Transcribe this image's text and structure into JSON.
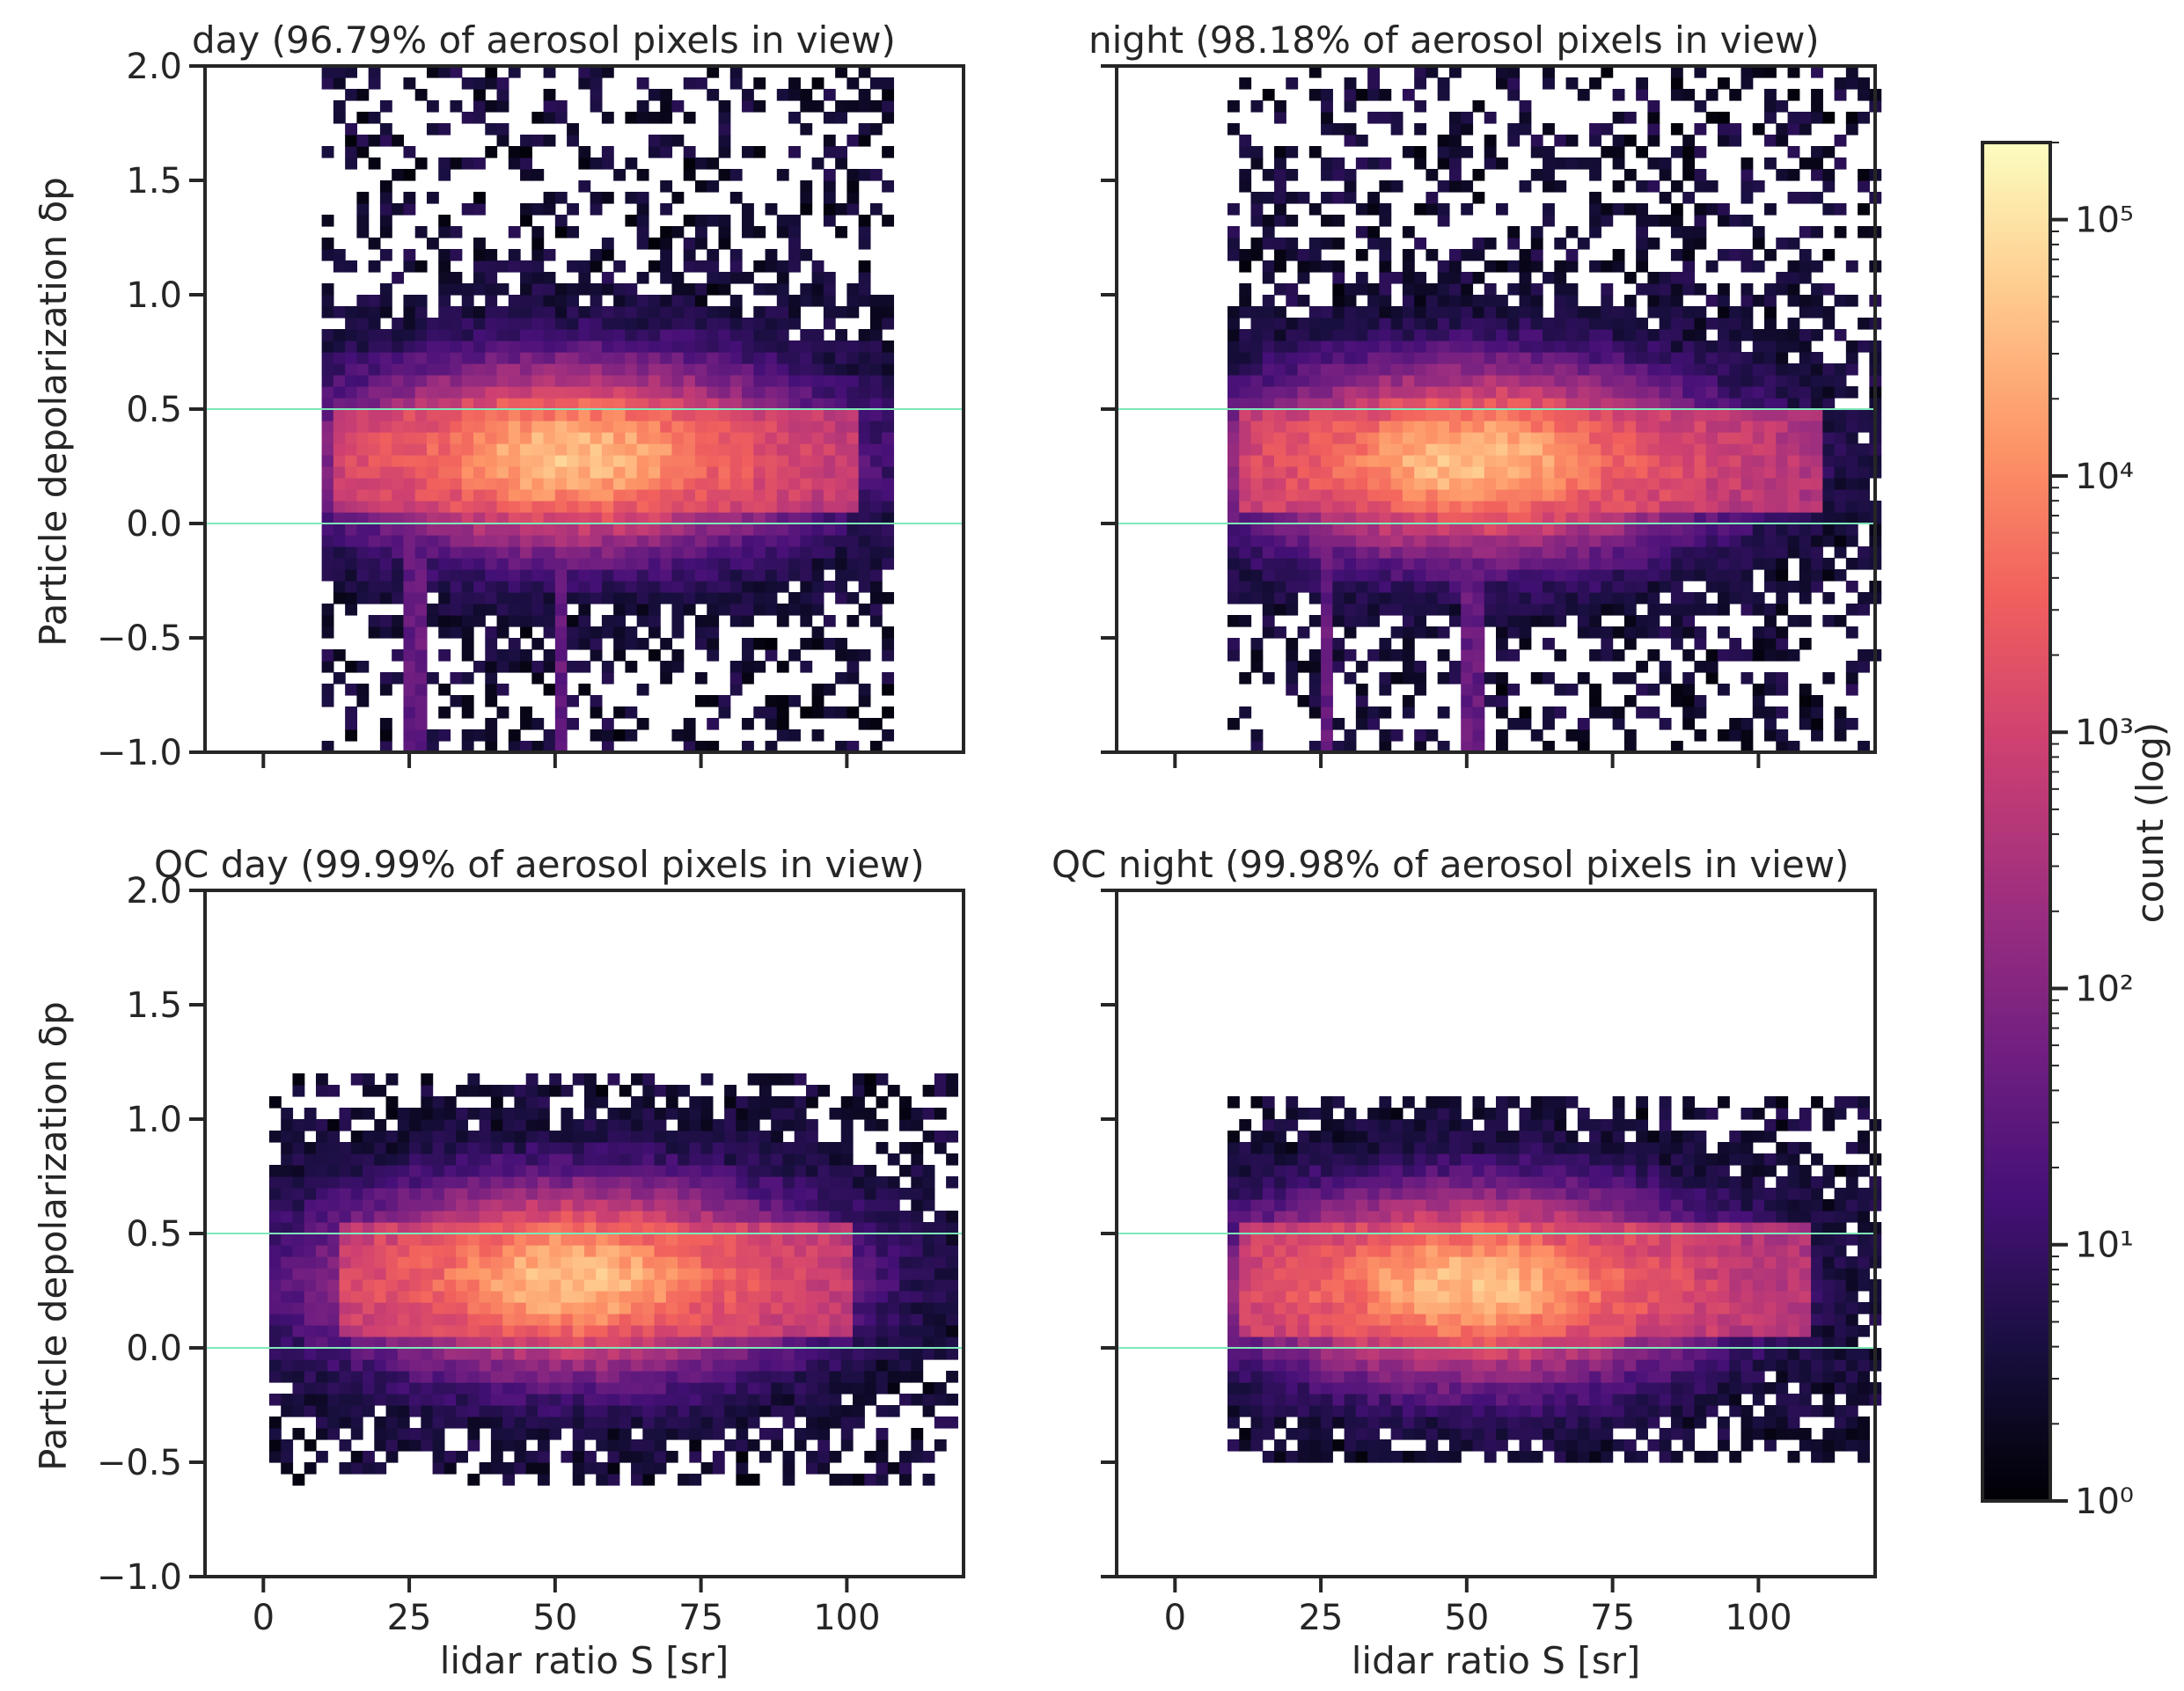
{
  "chart_data": [
    {
      "type": "heatmap",
      "title": "day  (96.79% of aerosol pixels in view)",
      "xlabel": "",
      "ylabel": "Particle depolarization δp",
      "xlim": [
        -10,
        120
      ],
      "ylim": [
        -1.0,
        2.0
      ],
      "x_ticks": [
        0,
        25,
        50,
        75,
        100
      ],
      "x_tick_labels": [],
      "y_ticks": [
        -1.0,
        -0.5,
        0.0,
        0.5,
        1.0,
        1.5,
        2.0
      ],
      "y_tick_labels": [
        "−1.0",
        "−0.5",
        "0.0",
        "0.5",
        "1.0",
        "1.5",
        "2.0"
      ],
      "reference_lines_y": [
        0.0,
        0.5
      ],
      "density": {
        "x_min": 10,
        "x_max": 108,
        "y_min": -1.0,
        "y_max": 2.0,
        "core_x": [
          12,
          100
        ],
        "core_y": [
          0.03,
          0.5
        ],
        "peak_x": 52,
        "peak_y": 0.27,
        "stripes_x": [
          25,
          50
        ]
      }
    },
    {
      "type": "heatmap",
      "title": "night  (98.18% of aerosol pixels in view)",
      "xlabel": "",
      "ylabel": "",
      "xlim": [
        -10,
        120
      ],
      "ylim": [
        -1.0,
        2.0
      ],
      "x_ticks": [
        0,
        25,
        50,
        75,
        100
      ],
      "x_tick_labels": [],
      "y_ticks": [
        -1.0,
        -0.5,
        0.0,
        0.5,
        1.0,
        1.5,
        2.0
      ],
      "y_tick_labels": [],
      "reference_lines_y": [
        0.0,
        0.5
      ],
      "density": {
        "x_min": 9,
        "x_max": 120,
        "y_min": -1.0,
        "y_max": 2.0,
        "core_x": [
          10,
          110
        ],
        "core_y": [
          0.03,
          0.5
        ],
        "peak_x": 50,
        "peak_y": 0.25,
        "stripes_x": [
          25,
          50
        ]
      }
    },
    {
      "type": "heatmap",
      "title": "QC day  (99.99% of aerosol pixels in view)",
      "xlabel": "lidar ratio S [sr]",
      "ylabel": "Particle depolarization δp",
      "xlim": [
        -10,
        120
      ],
      "ylim": [
        -1.0,
        2.0
      ],
      "x_ticks": [
        0,
        25,
        50,
        75,
        100
      ],
      "x_tick_labels": [
        "0",
        "25",
        "50",
        "75",
        "100"
      ],
      "y_ticks": [
        -1.0,
        -0.5,
        0.0,
        0.5,
        1.0,
        1.5,
        2.0
      ],
      "y_tick_labels": [
        "−1.0",
        "−0.5",
        "0.0",
        "0.5",
        "1.0",
        "1.5",
        "2.0"
      ],
      "reference_lines_y": [
        0.0,
        0.5
      ],
      "density": {
        "x_min": 1,
        "x_max": 118,
        "y_min": -0.6,
        "y_max": 1.2,
        "core_x": [
          12,
          100
        ],
        "core_y": [
          0.03,
          0.5
        ],
        "peak_x": 52,
        "peak_y": 0.28,
        "stripes_x": []
      }
    },
    {
      "type": "heatmap",
      "title": "QC night  (99.98% of aerosol pixels in view)",
      "xlabel": "lidar ratio S [sr]",
      "ylabel": "",
      "xlim": [
        -10,
        120
      ],
      "ylim": [
        -1.0,
        2.0
      ],
      "x_ticks": [
        0,
        25,
        50,
        75,
        100
      ],
      "x_tick_labels": [
        "0",
        "25",
        "50",
        "75",
        "100"
      ],
      "y_ticks": [
        -1.0,
        -0.5,
        0.0,
        0.5,
        1.0,
        1.5,
        2.0
      ],
      "y_tick_labels": [],
      "reference_lines_y": [
        0.0,
        0.5
      ],
      "density": {
        "x_min": 9,
        "x_max": 120,
        "y_min": -0.5,
        "y_max": 1.1,
        "core_x": [
          10,
          108
        ],
        "core_y": [
          0.03,
          0.5
        ],
        "peak_x": 50,
        "peak_y": 0.25,
        "stripes_x": []
      }
    }
  ],
  "colorbar": {
    "label": "count (log)",
    "scale": "log",
    "range": [
      1,
      200000
    ],
    "colormap": "magma",
    "ticks": [
      1,
      10,
      100,
      1000,
      10000,
      100000
    ],
    "tick_labels": [
      "10⁰",
      "10¹",
      "10²",
      "10³",
      "10⁴",
      "10⁵"
    ],
    "gradient": [
      "#000004",
      "#180f3e",
      "#451077",
      "#721f81",
      "#9f2f7f",
      "#cd4071",
      "#f1605d",
      "#fd9567",
      "#feca8d",
      "#fcfdbf"
    ]
  },
  "colors": {
    "reference_line": "#7ee8b8",
    "axis": "#262626"
  }
}
